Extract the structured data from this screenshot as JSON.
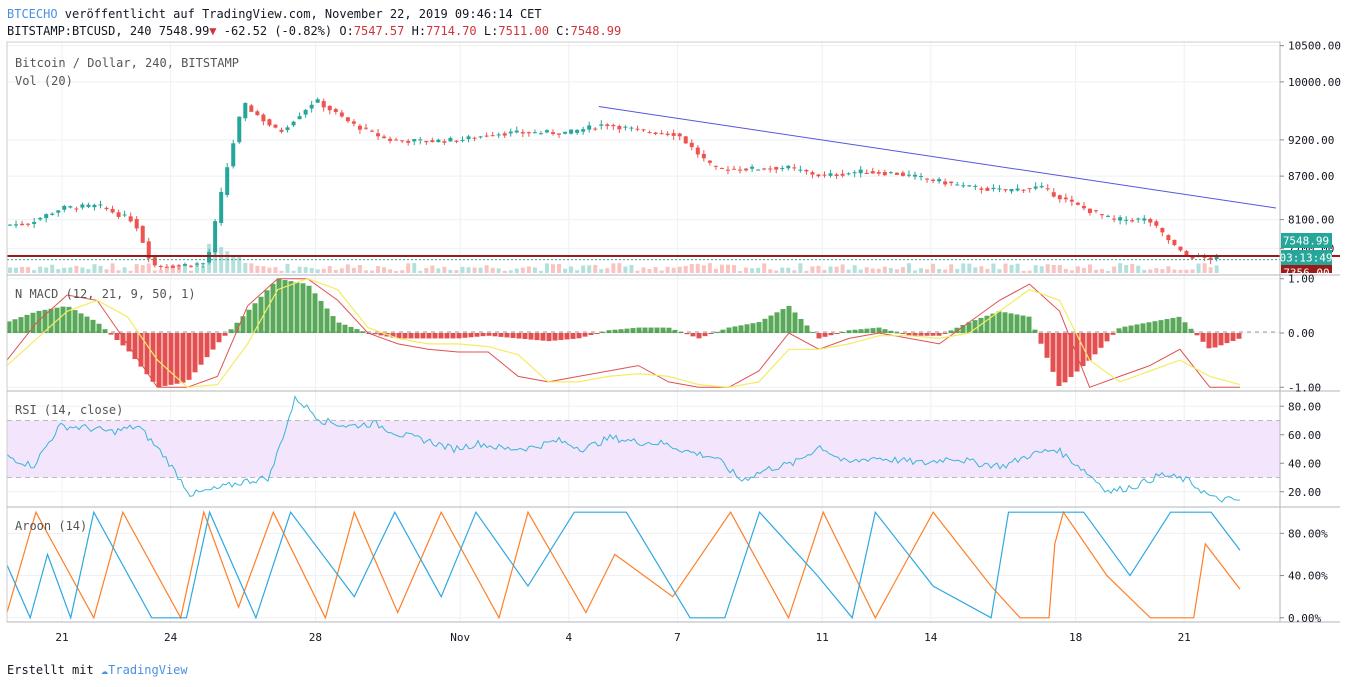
{
  "header": {
    "line1": {
      "source": "BTCECHO",
      "text": " veröffentlicht auf TradingView.com, November 22, 2019 09:46:14 CET"
    },
    "line2": {
      "symbol": "BITSTAMP:BTCUSD, 240 ",
      "last": "7548.99",
      "change": " -62.52 (-0.82%) ",
      "o_label": "O:",
      "o_value": "7547.57",
      "h_label": " H:",
      "h_value": "7714.70",
      "l_label": " L:",
      "l_value": "7511.00",
      "c_label": " C:",
      "c_value": "7548.99"
    }
  },
  "footer": {
    "created_with": "Erstellt mit ",
    "brand": "TradingView"
  },
  "colors": {
    "up": "#26a69a",
    "down": "#ef5350",
    "trend": "#5555dd",
    "support": "#9b1b1b",
    "rsi_band": "#f3e5fb",
    "macd_fast": "#e05050",
    "macd_slow": "#f4ec60",
    "rsi_line": "#3ab4d8",
    "aroon_up": "#ff7f27",
    "aroon_down": "#2ea8e0"
  },
  "chart_data": [
    {
      "type": "candlestick",
      "title": "Bitcoin / Dollar, 240, BITSTAMP",
      "subtitle": "Vol (20)",
      "x_ticks": [
        "21",
        "24",
        "28",
        "Nov",
        "4",
        "7",
        "11",
        "14",
        "18",
        "21"
      ],
      "y_ticks": [
        "10500.00",
        "10000.00",
        "9200.00",
        "8700.00",
        "8100.00",
        "7700.00"
      ],
      "y_tick_values": [
        10500,
        10000,
        9200,
        8700,
        8100,
        7700
      ],
      "ylim": [
        7350,
        10550
      ],
      "last_price_label": "7548.99",
      "countdown_label": "03:13:49",
      "support_label": "7356.00",
      "support_level": 7356,
      "trendline": {
        "from": [
          "Nov 4",
          9660
        ],
        "to": [
          "Nov 24",
          8260
        ]
      },
      "close_path": [
        [
          "Oct 19",
          8020
        ],
        [
          "Oct 20",
          8040
        ],
        [
          "Oct 21",
          8260
        ],
        [
          "Oct 22",
          8290
        ],
        [
          "Oct 23",
          8080
        ],
        [
          "Oct 23.5",
          7470
        ],
        [
          "Oct 24",
          7460
        ],
        [
          "Oct 25",
          7500
        ],
        [
          "Oct 25.5",
          8700
        ],
        [
          "Oct 26",
          9700
        ],
        [
          "Oct 27",
          9300
        ],
        [
          "Oct 28",
          9750
        ],
        [
          "Oct 29",
          9420
        ],
        [
          "Oct 30",
          9200
        ],
        [
          "Oct 31",
          9180
        ],
        [
          "Nov 1",
          9200
        ],
        [
          "Nov 2",
          9290
        ],
        [
          "Nov 3",
          9300
        ],
        [
          "Nov 4",
          9300
        ],
        [
          "Nov 5",
          9420
        ],
        [
          "Nov 6",
          9320
        ],
        [
          "Nov 7",
          9280
        ],
        [
          "Nov 8",
          8800
        ],
        [
          "Nov 9",
          8800
        ],
        [
          "Nov 10",
          8820
        ],
        [
          "Nov 11",
          8700
        ],
        [
          "Nov 12",
          8760
        ],
        [
          "Nov 13",
          8740
        ],
        [
          "Nov 14",
          8650
        ],
        [
          "Nov 15",
          8550
        ],
        [
          "Nov 16",
          8500
        ],
        [
          "Nov 17",
          8550
        ],
        [
          "Nov 18",
          8300
        ],
        [
          "Nov 19",
          8100
        ],
        [
          "Nov 20",
          8100
        ],
        [
          "Nov 21",
          7600
        ],
        [
          "Nov 22",
          7549
        ]
      ]
    },
    {
      "type": "line",
      "title": "N MACD (12, 21, 9, 50, 1)",
      "y_ticks": [
        "1.00",
        "0.00",
        "-1.00"
      ],
      "y_tick_values": [
        1,
        0,
        -1
      ],
      "ylim": [
        -1.05,
        1.05
      ],
      "series": [
        {
          "role": "histogram",
          "values": [
            0.2,
            0.4,
            0.5,
            0.2,
            -0.3,
            -1.0,
            -0.9,
            -0.2,
            0.4,
            1.0,
            0.9,
            0.2,
            0.0,
            -0.1,
            -0.1,
            -0.1,
            -0.05,
            -0.1,
            -0.15,
            -0.1,
            0.05,
            0.1,
            0.1,
            -0.1,
            0.1,
            0.2,
            0.5,
            -0.1,
            0.05,
            0.1,
            -0.05,
            -0.05,
            0.2,
            0.4,
            0.3,
            -1.0,
            -0.5,
            0.1,
            0.2,
            0.3,
            -0.3,
            -0.1
          ]
        },
        {
          "role": "fast",
          "values": [
            -0.5,
            0.2,
            0.7,
            0.6,
            -0.2,
            -1.0,
            -1.0,
            -0.8,
            0.5,
            1.0,
            1.0,
            0.6,
            0.0,
            -0.2,
            -0.3,
            -0.35,
            -0.35,
            -0.8,
            -0.9,
            -0.8,
            -0.7,
            -0.6,
            -0.9,
            -1.0,
            -1.0,
            -0.7,
            0.0,
            -0.3,
            -0.1,
            0.0,
            -0.1,
            -0.2,
            0.2,
            0.6,
            0.9,
            0.4,
            -1.0,
            -0.8,
            -0.6,
            -0.3,
            -1.0,
            -1.0
          ]
        },
        {
          "role": "slow",
          "values": [
            -0.6,
            -0.1,
            0.4,
            0.6,
            0.3,
            -0.5,
            -1.0,
            -0.95,
            -0.2,
            0.8,
            1.0,
            0.8,
            0.1,
            -0.1,
            -0.2,
            -0.2,
            -0.25,
            -0.4,
            -0.9,
            -0.9,
            -0.8,
            -0.75,
            -0.8,
            -0.95,
            -1.0,
            -0.9,
            -0.3,
            -0.3,
            -0.2,
            -0.05,
            -0.05,
            -0.1,
            0.0,
            0.4,
            0.8,
            0.6,
            -0.5,
            -0.9,
            -0.7,
            -0.5,
            -0.8,
            -0.95
          ]
        }
      ]
    },
    {
      "type": "line",
      "title": "RSI (14, close)",
      "y_ticks": [
        "80.00",
        "60.00",
        "40.00",
        "20.00"
      ],
      "y_tick_values": [
        80,
        60,
        40,
        20
      ],
      "ylim": [
        10,
        90
      ],
      "band": [
        30,
        70
      ],
      "values": [
        45,
        38,
        66,
        65,
        62,
        66,
        45,
        18,
        22,
        27,
        30,
        86,
        70,
        66,
        68,
        60,
        56,
        50,
        54,
        50,
        51,
        56,
        50,
        58,
        55,
        54,
        48,
        44,
        28,
        36,
        40,
        52,
        40,
        44,
        42,
        40,
        44,
        40,
        38,
        46,
        50,
        36,
        20,
        24,
        32,
        28,
        15,
        14
      ]
    },
    {
      "type": "line",
      "title": "Aroon (14)",
      "y_ticks": [
        "80.00%",
        "40.00%",
        "0.00%"
      ],
      "y_tick_values": [
        80,
        40,
        0
      ],
      "ylim": [
        -4,
        104
      ],
      "series": [
        {
          "role": "up",
          "values": [
            [
              0,
              5
            ],
            [
              10,
              100
            ],
            [
              30,
              0
            ],
            [
              40,
              100
            ],
            [
              60,
              0
            ],
            [
              68,
              100
            ],
            [
              80,
              10
            ],
            [
              92,
              100
            ],
            [
              110,
              0
            ],
            [
              120,
              100
            ],
            [
              135,
              5
            ],
            [
              150,
              100
            ],
            [
              170,
              0
            ],
            [
              180,
              100
            ],
            [
              200,
              5
            ],
            [
              210,
              60
            ],
            [
              230,
              20
            ],
            [
              250,
              100
            ],
            [
              270,
              0
            ],
            [
              282,
              100
            ],
            [
              300,
              0
            ],
            [
              320,
              100
            ],
            [
              340,
              30
            ],
            [
              350,
              0
            ],
            [
              360,
              0
            ],
            [
              362,
              70
            ],
            [
              365,
              100
            ],
            [
              380,
              40
            ],
            [
              395,
              0
            ],
            [
              410,
              0
            ],
            [
              414,
              70
            ],
            [
              426,
              27
            ]
          ]
        },
        {
          "role": "down",
          "values": [
            [
              0,
              50
            ],
            [
              8,
              0
            ],
            [
              14,
              60
            ],
            [
              22,
              0
            ],
            [
              30,
              100
            ],
            [
              50,
              0
            ],
            [
              62,
              0
            ],
            [
              70,
              100
            ],
            [
              86,
              0
            ],
            [
              98,
              100
            ],
            [
              120,
              20
            ],
            [
              134,
              100
            ],
            [
              150,
              20
            ],
            [
              162,
              100
            ],
            [
              180,
              30
            ],
            [
              196,
              100
            ],
            [
              214,
              100
            ],
            [
              236,
              0
            ],
            [
              248,
              0
            ],
            [
              260,
              100
            ],
            [
              280,
              40
            ],
            [
              292,
              0
            ],
            [
              300,
              100
            ],
            [
              320,
              30
            ],
            [
              340,
              0
            ],
            [
              346,
              100
            ],
            [
              372,
              100
            ],
            [
              388,
              40
            ],
            [
              402,
              100
            ],
            [
              416,
              100
            ],
            [
              426,
              64
            ]
          ]
        }
      ]
    }
  ]
}
